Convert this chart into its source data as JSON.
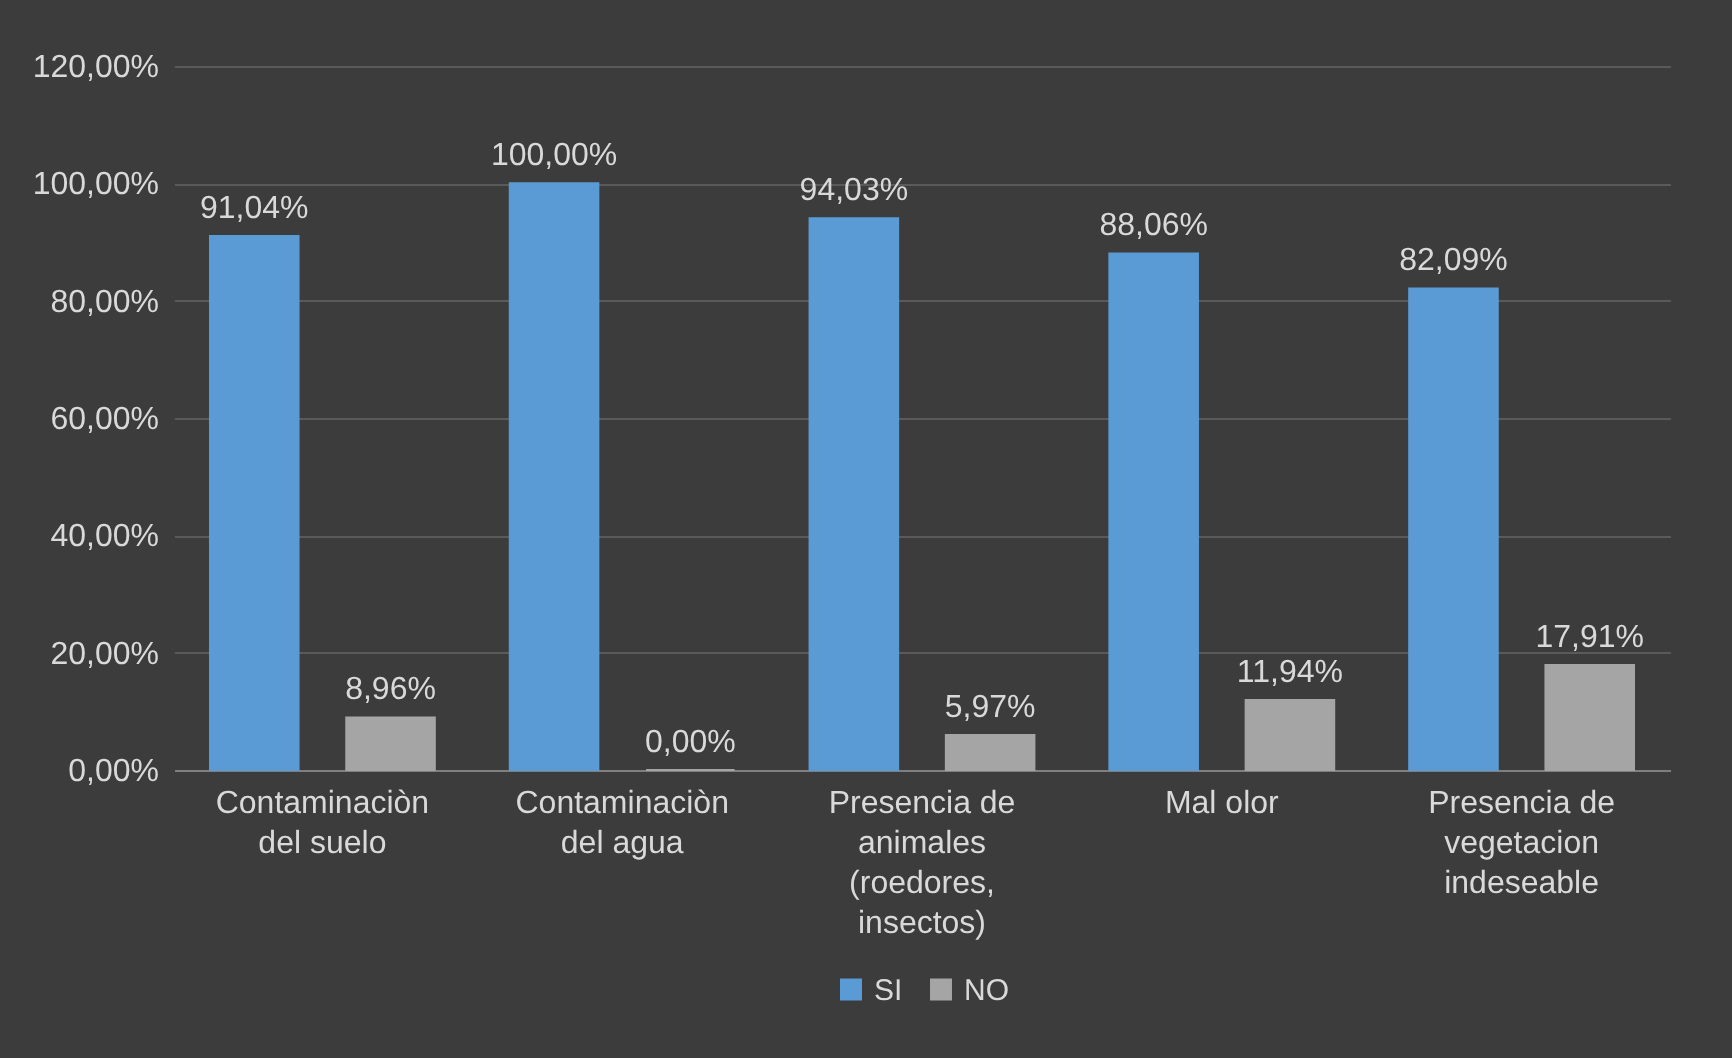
{
  "chart_data": {
    "type": "bar",
    "categories": [
      "Contaminaciòn del suelo",
      "Contaminaciòn del agua",
      "Presencia de animales (roedores, insectos)",
      "Mal olor",
      "Presencia de vegetacion indeseable"
    ],
    "series": [
      {
        "name": "SI",
        "color": "#5b9bd5",
        "values": [
          91.04,
          100,
          94.03,
          88.06,
          82.09
        ],
        "value_labels": [
          "91,04%",
          "100,00%",
          "94,03%",
          "88,06%",
          "82,09%"
        ]
      },
      {
        "name": "NO",
        "color": "#a5a5a5",
        "values": [
          8.96,
          0,
          5.97,
          11.94,
          17.91
        ],
        "value_labels": [
          "8,96%",
          "0,00%",
          "5,97%",
          "11,94%",
          "17,91%"
        ]
      }
    ],
    "ylim": [
      0,
      120
    ],
    "yticks": [
      {
        "value": 0,
        "label": "0,00%"
      },
      {
        "value": 20,
        "label": "20,00%"
      },
      {
        "value": 40,
        "label": "40,00%"
      },
      {
        "value": 60,
        "label": "60,00%"
      },
      {
        "value": 80,
        "label": "80,00%"
      },
      {
        "value": 100,
        "label": "100,00%"
      },
      {
        "value": 120,
        "label": "120,00%"
      }
    ],
    "grid": "y",
    "legend": "bottom"
  }
}
